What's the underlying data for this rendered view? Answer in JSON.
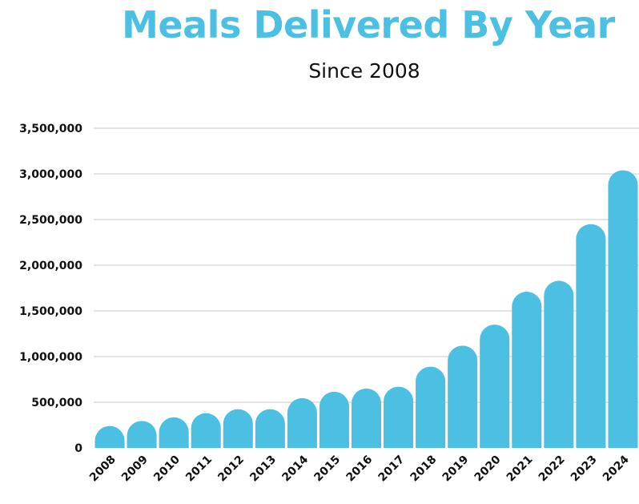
{
  "chart_data": {
    "type": "bar",
    "title": "Meals Delivered By Year",
    "subtitle": "Since 2008",
    "xlabel": "",
    "ylabel": "",
    "categories": [
      "2008",
      "2009",
      "2010",
      "2011",
      "2012",
      "2013",
      "2014",
      "2015",
      "2016",
      "2017",
      "2018",
      "2019",
      "2020",
      "2021",
      "2022",
      "2023",
      "2024"
    ],
    "values": [
      240000,
      295000,
      335000,
      380000,
      425000,
      425000,
      545000,
      615000,
      650000,
      670000,
      890000,
      1120000,
      1350000,
      1710000,
      1830000,
      2450000,
      3040000
    ],
    "ylim": [
      0,
      3500000
    ],
    "yticks": [
      0,
      500000,
      1000000,
      1500000,
      2000000,
      2500000,
      3000000,
      3500000
    ],
    "ytick_labels": [
      "0",
      "500,000",
      "1,000,000",
      "1,500,000",
      "2,000,000",
      "2,500,000",
      "3,000,000",
      "3,500,000"
    ],
    "grid": true,
    "legend": "none",
    "bar_color": "#4cc0e3",
    "title_color": "#4cc0e3"
  }
}
